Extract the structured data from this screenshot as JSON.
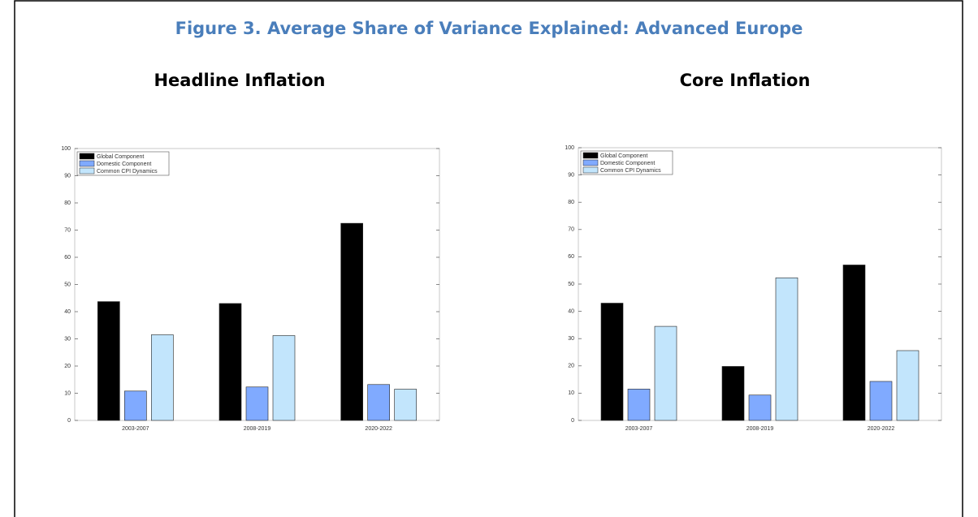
{
  "figure_title": "Figure 3. Average Share of Variance Explained: Advanced Europe",
  "chart_data": [
    {
      "type": "bar",
      "title": "Headline Inflation",
      "categories": [
        "2003-2007",
        "2008-2019",
        "2020-2022"
      ],
      "series": [
        {
          "name": "Global Component",
          "color": "#000000",
          "values": [
            43.7,
            43,
            72.5
          ]
        },
        {
          "name": "Domestic Component",
          "color": "#80aaff",
          "values": [
            10.8,
            12.3,
            13.2
          ]
        },
        {
          "name": "Common CPI Dynamics",
          "color": "#c2e5fc",
          "values": [
            31.5,
            31.2,
            11.5
          ]
        }
      ],
      "ylim": [
        0,
        100
      ],
      "yticks": [
        0,
        10,
        20,
        30,
        40,
        50,
        60,
        70,
        80,
        90,
        100
      ],
      "legend": "upper left"
    },
    {
      "type": "bar",
      "title": "Core Inflation",
      "categories": [
        "2003-2007",
        "2008-2019",
        "2020-2022"
      ],
      "series": [
        {
          "name": "Global Component",
          "color": "#000000",
          "values": [
            43,
            19.8,
            57
          ]
        },
        {
          "name": "Domestic Component",
          "color": "#80aaff",
          "values": [
            11.5,
            9.3,
            14.3
          ]
        },
        {
          "name": "Common CPI Dynamics",
          "color": "#c2e5fc",
          "values": [
            34.5,
            52.3,
            25.6
          ]
        }
      ],
      "ylim": [
        0,
        100
      ],
      "yticks": [
        0,
        10,
        20,
        30,
        40,
        50,
        60,
        70,
        80,
        90,
        100
      ],
      "legend": "upper left"
    }
  ]
}
